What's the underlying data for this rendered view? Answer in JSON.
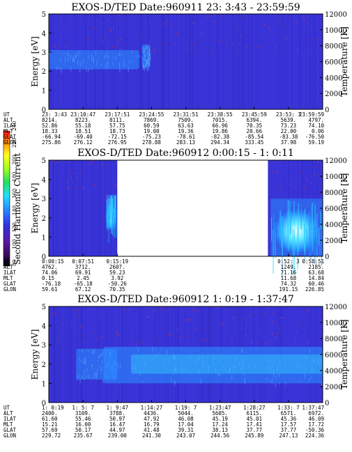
{
  "colors": {
    "background": "#3a34d8",
    "gap": "#ffffff",
    "band": "#2a8cff",
    "band_core": "#30d0ff",
    "hot": "#ffffff",
    "speckle": "#d23a3a",
    "frame": "#000000"
  },
  "colorbar": {
    "label": "Second Harmonic Current",
    "ticks": [
      "240",
      "220",
      "200",
      "180",
      "160",
      "140",
      "120",
      "100",
      "80"
    ],
    "range": [
      80,
      240
    ]
  },
  "chart_data": [
    {
      "type": "heatmap",
      "title": "EXOS-D/TED   Date:960911  23: 3:43 - 23:59:59",
      "ylabel": "Energy [eV]",
      "y2label": "Temperature [K]",
      "ylim": [
        0,
        5
      ],
      "y2lim": [
        0,
        12000
      ],
      "yticks": [
        "0",
        "1",
        "2",
        "3",
        "4",
        "5"
      ],
      "y2ticks": [
        "0",
        "2000",
        "4000",
        "6000",
        "8000",
        "10000",
        "12000"
      ],
      "row_labels": [
        "UT",
        "ALT",
        "ILAT",
        "MLT",
        "GLAT",
        "GLON"
      ],
      "columns": [
        {
          "ut": "23: 3:43",
          "alt": "8214.",
          "ilat": "52.86",
          "mlt": "18.33",
          "glat": "-66.94",
          "glon": "275.86"
        },
        {
          "ut": "23:10:47",
          "alt": "8223.",
          "ilat": "55.18",
          "mlt": "18.51",
          "glat": "-69.40",
          "glon": "276.12"
        },
        {
          "ut": "23:17:51",
          "alt": "8111.",
          "ilat": "57.75",
          "mlt": "18.73",
          "glat": "-72.15",
          "glon": "276.95"
        },
        {
          "ut": "23:24:55",
          "alt": "7869.",
          "ilat": "60.59",
          "mlt": "19.00",
          "glat": "-75.23",
          "glon": "278.88"
        },
        {
          "ut": "23:31:51",
          "alt": "7509.",
          "ilat": "63.63",
          "mlt": "19.36",
          "glat": "-78.61",
          "glon": "283.13"
        },
        {
          "ut": "23:38:55",
          "alt": "7015.",
          "ilat": "66.96",
          "mlt": "19.86",
          "glat": "-82.38",
          "glon": "294.34"
        },
        {
          "ut": "23:45:59",
          "alt": "6394.",
          "ilat": "70.35",
          "mlt": "20.66",
          "glat": "-85.54",
          "glon": "333.45"
        },
        {
          "ut": "23:53: 3",
          "alt": "5639.",
          "ilat": "73.23",
          "mlt": "22.00",
          "glat": "-83.38",
          "glon": "37.98"
        },
        {
          "ut": "23:59:59",
          "alt": "4797.",
          "ilat": "74.10",
          "mlt": "0.06",
          "glat": "-76.50",
          "glon": "59.19"
        }
      ],
      "features": [
        {
          "t0": 0.0,
          "t1": 0.33,
          "e0": 2.1,
          "e1": 3.1,
          "level": "mid"
        },
        {
          "t0": 0.34,
          "t1": 0.37,
          "e0": 2.2,
          "e1": 3.4,
          "level": "mid"
        }
      ],
      "gaps": []
    },
    {
      "type": "heatmap",
      "title": "EXOS-D/TED   Date:960912  0:00:15 - 1: 0:11",
      "ylabel": "Energy [eV]",
      "y2label": "Temperature [K]",
      "ylim": [
        0,
        5
      ],
      "y2lim": [
        0,
        12000
      ],
      "yticks": [
        "0",
        "1",
        "2",
        "3",
        "4",
        "5"
      ],
      "y2ticks": [
        "0",
        "2000",
        "4000",
        "6000",
        "8000",
        "10000",
        "12000"
      ],
      "row_labels": [
        "UT",
        "ALT",
        "ILAT",
        "MLT",
        "GLAT",
        "GLON"
      ],
      "columns": [
        {
          "ut": "0:00:15",
          "alt": "4762.",
          "ilat": "74.06",
          "mlt": "0.15",
          "glat": "-76.18",
          "glon": "59.61"
        },
        {
          "ut": "0:07:51",
          "alt": "3712.",
          "ilat": "69.91",
          "mlt": "2.45",
          "glat": "-65.18",
          "glon": "67.12"
        },
        {
          "ut": "0:15:19",
          "alt": "2607.",
          "ilat": "59.23",
          "mlt": "3.92",
          "glat": "-50.26",
          "glon": "70.35"
        },
        {
          "ut": "",
          "alt": "",
          "ilat": "",
          "mlt": "",
          "glat": "",
          "glon": ""
        },
        {
          "ut": "",
          "alt": "",
          "ilat": "",
          "mlt": "",
          "glat": "",
          "glon": ""
        },
        {
          "ut": "",
          "alt": "",
          "ilat": "",
          "mlt": "",
          "glat": "",
          "glon": ""
        },
        {
          "ut": "",
          "alt": "",
          "ilat": "",
          "mlt": "",
          "glat": "",
          "glon": ""
        },
        {
          "ut": "0:52: 3",
          "alt": "1249.",
          "ilat": "71.16",
          "mlt": "11.68",
          "glat": "74.32",
          "glon": "191.15"
        },
        {
          "ut": "0:58:51",
          "alt": "2185.",
          "ilat": "63.68",
          "mlt": "14.84",
          "glat": "60.46",
          "glon": "226.85"
        }
      ],
      "features": [
        {
          "t0": 0.21,
          "t1": 0.245,
          "e0": 1.4,
          "e1": 3.2,
          "level": "hot"
        },
        {
          "t0": 0.81,
          "t1": 1.0,
          "e0": 0.0,
          "e1": 3.0,
          "level": "hot"
        }
      ],
      "gaps": [
        [
          0.25,
          0.8
        ]
      ]
    },
    {
      "type": "heatmap",
      "title": "EXOS-D/TED   Date:960912  1: 0:19 - 1:37:47",
      "ylabel": "Energy [eV]",
      "y2label": "Temperature [K]",
      "ylim": [
        0,
        5
      ],
      "y2lim": [
        0,
        12000
      ],
      "yticks": [
        "0",
        "1",
        "2",
        "3",
        "4",
        "5"
      ],
      "y2ticks": [
        "0",
        "2000",
        "4000",
        "6000",
        "8000",
        "10000",
        "12000"
      ],
      "row_labels": [
        "UT",
        "ALT",
        "ILAT",
        "MLT",
        "GLAT",
        "GLON"
      ],
      "columns": [
        {
          "ut": "1: 0:19",
          "alt": "2400.",
          "ilat": "61.60",
          "mlt": "15.21",
          "glat": "57.69",
          "glon": "229.72"
        },
        {
          "ut": "1: 5: 7",
          "alt": "3109.",
          "ilat": "55.46",
          "mlt": "16.00",
          "glat": "50.17",
          "glon": "235.67"
        },
        {
          "ut": "1: 9:47",
          "alt": "3788.",
          "ilat": "50.97",
          "mlt": "16.47",
          "glat": "44.97",
          "glon": "239.00"
        },
        {
          "ut": "1:14:27",
          "alt": "4436.",
          "ilat": "47.92",
          "mlt": "16.79",
          "glat": "41.48",
          "glon": "241.30"
        },
        {
          "ut": "1:19: 7",
          "alt": "5044.",
          "ilat": "46.08",
          "mlt": "17.04",
          "glat": "39.31",
          "glon": "243.07"
        },
        {
          "ut": "1:23:47",
          "alt": "5605.",
          "ilat": "45.19",
          "mlt": "17.24",
          "glat": "38.13",
          "glon": "244.56"
        },
        {
          "ut": "1:28:27",
          "alt": "6115.",
          "ilat": "45.01",
          "mlt": "17.41",
          "glat": "37.77",
          "glon": "245.89"
        },
        {
          "ut": "1:33: 7",
          "alt": "6571.",
          "ilat": "45.36",
          "mlt": "17.57",
          "glat": "37.77",
          "glon": "247.13"
        },
        {
          "ut": "1:37:47",
          "alt": "6972.",
          "ilat": "46.09",
          "mlt": "17.72",
          "glat": "-50.36",
          "glon": "224.36"
        }
      ],
      "features": [
        {
          "t0": 0.1,
          "t1": 0.25,
          "e0": 1.2,
          "e1": 2.8,
          "level": "mid"
        },
        {
          "t0": 0.2,
          "t1": 1.0,
          "e0": 1.0,
          "e1": 2.9,
          "level": "mid"
        },
        {
          "t0": 0.3,
          "t1": 1.0,
          "e0": 1.5,
          "e1": 2.5,
          "level": "core"
        }
      ],
      "gaps": []
    }
  ]
}
